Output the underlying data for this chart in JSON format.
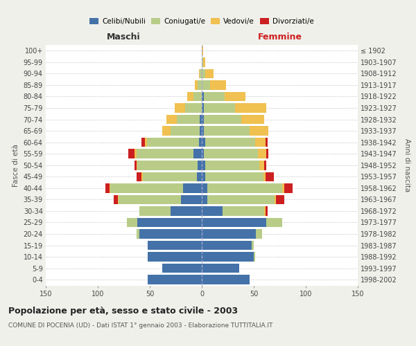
{
  "age_groups": [
    "0-4",
    "5-9",
    "10-14",
    "15-19",
    "20-24",
    "25-29",
    "30-34",
    "35-39",
    "40-44",
    "45-49",
    "50-54",
    "55-59",
    "60-64",
    "65-69",
    "70-74",
    "75-79",
    "80-84",
    "85-89",
    "90-94",
    "95-99",
    "100+"
  ],
  "birth_years": [
    "1998-2002",
    "1993-1997",
    "1988-1992",
    "1983-1987",
    "1978-1982",
    "1973-1977",
    "1968-1972",
    "1963-1967",
    "1958-1962",
    "1953-1957",
    "1948-1952",
    "1943-1947",
    "1938-1942",
    "1933-1937",
    "1928-1932",
    "1923-1927",
    "1918-1922",
    "1913-1917",
    "1908-1912",
    "1903-1907",
    "≤ 1902"
  ],
  "male": {
    "celibe": [
      52,
      38,
      52,
      52,
      60,
      62,
      30,
      20,
      18,
      5,
      4,
      8,
      3,
      2,
      2,
      0,
      0,
      0,
      0,
      0,
      0
    ],
    "coniugato": [
      0,
      0,
      0,
      0,
      3,
      10,
      30,
      60,
      70,
      52,
      58,
      55,
      50,
      28,
      22,
      16,
      8,
      4,
      2,
      0,
      0
    ],
    "vedovo": [
      0,
      0,
      0,
      0,
      0,
      0,
      0,
      1,
      1,
      1,
      1,
      2,
      2,
      8,
      10,
      10,
      6,
      3,
      1,
      0,
      0
    ],
    "divorziato": [
      0,
      0,
      0,
      0,
      0,
      0,
      0,
      4,
      4,
      5,
      2,
      6,
      3,
      0,
      0,
      0,
      0,
      0,
      0,
      0,
      0
    ]
  },
  "female": {
    "nubile": [
      46,
      36,
      50,
      48,
      52,
      62,
      20,
      5,
      5,
      3,
      3,
      2,
      3,
      2,
      2,
      2,
      2,
      0,
      0,
      0,
      0
    ],
    "coniugata": [
      0,
      0,
      1,
      2,
      6,
      15,
      40,
      65,
      72,
      56,
      52,
      52,
      48,
      44,
      36,
      30,
      20,
      8,
      3,
      1,
      0
    ],
    "vedova": [
      0,
      0,
      0,
      0,
      0,
      0,
      1,
      1,
      2,
      2,
      5,
      8,
      10,
      18,
      22,
      30,
      20,
      15,
      8,
      2,
      1
    ],
    "divorziata": [
      0,
      0,
      0,
      0,
      0,
      0,
      2,
      8,
      8,
      8,
      2,
      2,
      2,
      0,
      0,
      0,
      0,
      0,
      0,
      0,
      0
    ]
  },
  "colors": {
    "celibe": "#4472a8",
    "coniugato": "#b8cc88",
    "vedovo": "#f0c050",
    "divorziato": "#cc2020"
  },
  "title": "Popolazione per età, sesso e stato civile - 2003",
  "subtitle": "COMUNE DI POCENIA (UD) - Dati ISTAT 1° gennaio 2003 - Elaborazione TUTTITALIA.IT",
  "xlabel_left": "Maschi",
  "xlabel_right": "Femmine",
  "ylabel_left": "Fasce di età",
  "ylabel_right": "Anni di nascita",
  "xlim": 150,
  "legend_labels": [
    "Celibi/Nubili",
    "Coniugati/e",
    "Vedovi/e",
    "Divorziati/e"
  ],
  "bg_color": "#f0f0eb",
  "plot_bg": "#ffffff",
  "grid_color": "#cccccc"
}
